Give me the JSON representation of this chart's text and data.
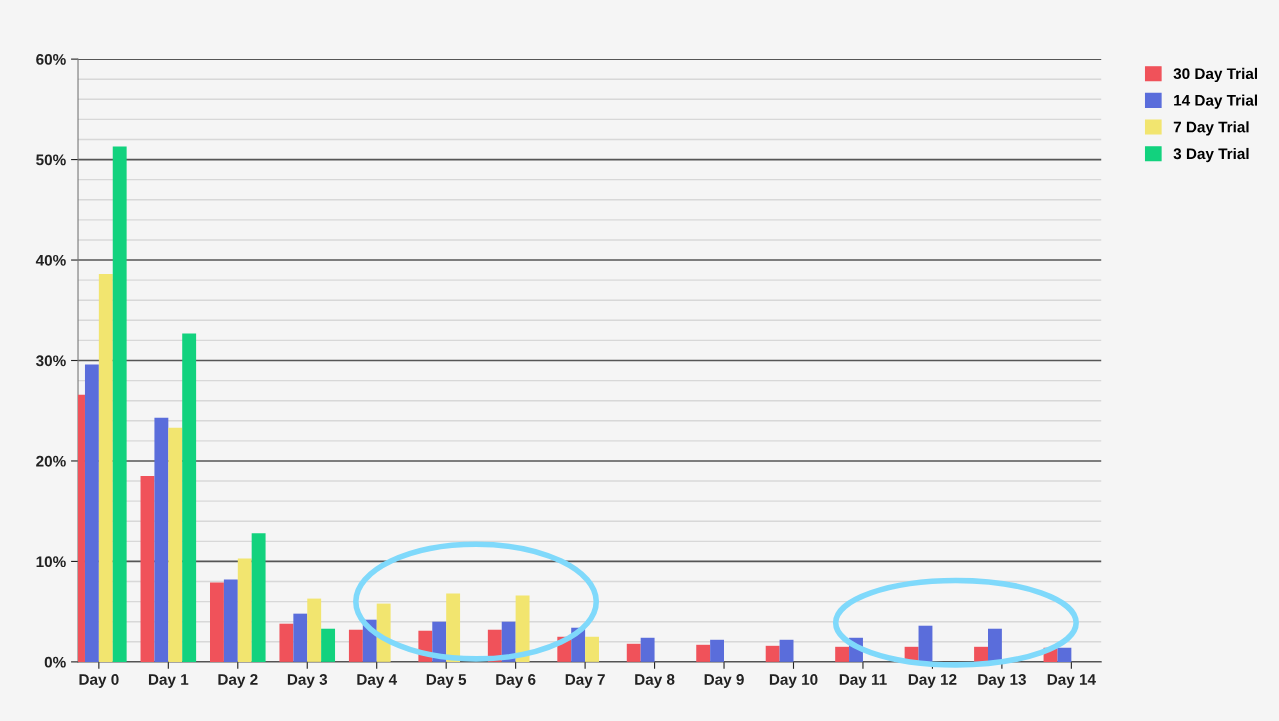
{
  "chart_data": {
    "type": "bar",
    "categories": [
      "Day 0",
      "Day 1",
      "Day 2",
      "Day 3",
      "Day 4",
      "Day 5",
      "Day 6",
      "Day 7",
      "Day 8",
      "Day 9",
      "Day 10",
      "Day 11",
      "Day 12",
      "Day 13",
      "Day 14"
    ],
    "series": [
      {
        "name": "30 Day Trial",
        "color": "#f0525a",
        "values": [
          26.6,
          18.5,
          7.9,
          3.8,
          3.2,
          3.1,
          3.2,
          2.5,
          1.8,
          1.7,
          1.6,
          1.5,
          1.5,
          1.5,
          1.4
        ]
      },
      {
        "name": "14 Day Trial",
        "color": "#5a6ddb",
        "values": [
          29.6,
          24.3,
          8.2,
          4.8,
          4.2,
          4.0,
          4.0,
          3.4,
          2.4,
          2.2,
          2.2,
          2.4,
          3.6,
          3.3,
          1.4
        ]
      },
      {
        "name": "7 Day Trial",
        "color": "#f2e56f",
        "values": [
          38.6,
          23.3,
          10.3,
          6.3,
          5.8,
          6.8,
          6.6,
          2.5,
          null,
          null,
          null,
          null,
          null,
          null,
          null
        ]
      },
      {
        "name": "3 Day Trial",
        "color": "#12d27e",
        "values": [
          51.3,
          32.7,
          12.8,
          3.3,
          null,
          null,
          null,
          null,
          null,
          null,
          null,
          null,
          null,
          null,
          null
        ]
      }
    ],
    "ylim": [
      0,
      60
    ],
    "yticks": [
      {
        "value": 0,
        "label": "0%"
      },
      {
        "value": 2,
        "label": null
      },
      {
        "value": 4,
        "label": null
      },
      {
        "value": 6,
        "label": null
      },
      {
        "value": 8,
        "label": null
      },
      {
        "value": 10,
        "label": "10%"
      },
      {
        "value": 12,
        "label": null
      },
      {
        "value": 14,
        "label": null
      },
      {
        "value": 16,
        "label": null
      },
      {
        "value": 18,
        "label": null
      },
      {
        "value": 20,
        "label": "20%"
      },
      {
        "value": 22,
        "label": null
      },
      {
        "value": 24,
        "label": null
      },
      {
        "value": 26,
        "label": null
      },
      {
        "value": 28,
        "label": null
      },
      {
        "value": 30,
        "label": "30%"
      },
      {
        "value": 32,
        "label": null
      },
      {
        "value": 34,
        "label": null
      },
      {
        "value": 36,
        "label": null
      },
      {
        "value": 38,
        "label": null
      },
      {
        "value": 40,
        "label": "40%"
      },
      {
        "value": 42,
        "label": null
      },
      {
        "value": 44,
        "label": null
      },
      {
        "value": 46,
        "label": null
      },
      {
        "value": 48,
        "label": null
      },
      {
        "value": 50,
        "label": "50%"
      },
      {
        "value": 52,
        "label": null
      },
      {
        "value": 54,
        "label": null
      },
      {
        "value": 56,
        "label": null
      },
      {
        "value": 58,
        "label": null
      },
      {
        "value": 60,
        "label": "60%"
      }
    ],
    "grid": "y",
    "legend": "top right"
  }
}
